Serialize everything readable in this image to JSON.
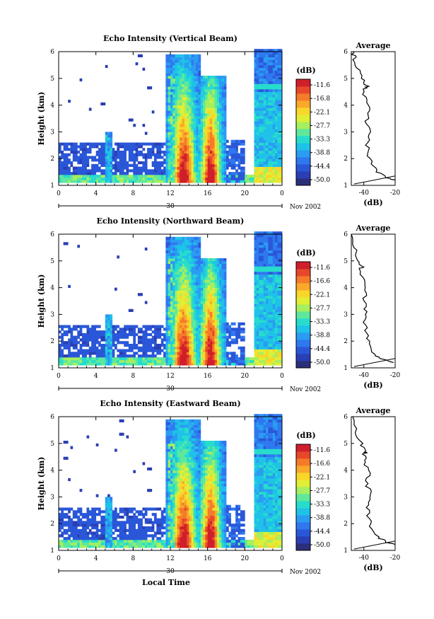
{
  "colors": {
    "scale": [
      "#2b2f7a",
      "#2a3fb4",
      "#2a57d8",
      "#2f78f0",
      "#2a9cf2",
      "#1fc2e8",
      "#27dccc",
      "#5fe89c",
      "#a6ef5e",
      "#e1ee36",
      "#f9d62a",
      "#f9a82a",
      "#f57a2a",
      "#e8482a",
      "#cf1f2a"
    ]
  },
  "chart_data": [
    {
      "type": "heatmap",
      "title": "Echo Intensity (Vertical Beam)",
      "xlabel": "",
      "ylabel": "Height (km)",
      "x_ticks": [
        "0",
        "4",
        "8",
        "12",
        "16",
        "20",
        "0"
      ],
      "y_ticks": [
        "1",
        "2",
        "3",
        "4",
        "5",
        "6"
      ],
      "date_label": "30",
      "month_label": "Nov 2002",
      "xlim": [
        0,
        24
      ],
      "ylim": [
        1,
        6
      ],
      "colorbar": {
        "unit": "(dB)",
        "ticks": [
          "-11.6",
          "-16.8",
          "-22.1",
          "-27.7",
          "-33.3",
          "-38.8",
          "-44.4",
          "-50.0"
        ],
        "range": [
          -50,
          -11.6
        ]
      },
      "average": {
        "title": "Average",
        "xlabel": "(dB)",
        "x_ticks": [
          "-40",
          "-20"
        ],
        "y_ticks": [
          "1",
          "2",
          "3",
          "4",
          "5",
          "6"
        ],
        "xlim": [
          -48,
          -20
        ],
        "profile": [
          {
            "h": 1.2,
            "db": -20
          },
          {
            "h": 1.3,
            "db": -26
          },
          {
            "h": 1.5,
            "db": -31
          },
          {
            "h": 1.8,
            "db": -35
          },
          {
            "h": 2.2,
            "db": -37
          },
          {
            "h": 2.6,
            "db": -38
          },
          {
            "h": 3.0,
            "db": -37
          },
          {
            "h": 3.4,
            "db": -38
          },
          {
            "h": 3.8,
            "db": -37
          },
          {
            "h": 4.2,
            "db": -39
          },
          {
            "h": 4.6,
            "db": -40
          },
          {
            "h": 4.7,
            "db": -38
          },
          {
            "h": 5.0,
            "db": -42
          },
          {
            "h": 5.4,
            "db": -44
          },
          {
            "h": 5.8,
            "db": -46
          },
          {
            "h": 6.0,
            "db": -47
          }
        ]
      }
    },
    {
      "type": "heatmap",
      "title": "Echo Intensity (Northward Beam)",
      "xlabel": "",
      "ylabel": "Height (km)",
      "x_ticks": [
        "0",
        "4",
        "8",
        "12",
        "16",
        "20",
        "0"
      ],
      "y_ticks": [
        "1",
        "2",
        "3",
        "4",
        "5",
        "6"
      ],
      "date_label": "30",
      "month_label": "Nov 2002",
      "xlim": [
        0,
        24
      ],
      "ylim": [
        1,
        6
      ],
      "colorbar": {
        "unit": "(dB)",
        "ticks": [
          "-11.6",
          "-16.6",
          "-22.1",
          "-27.7",
          "-33.3",
          "-38.8",
          "-44.4",
          "-50.0"
        ],
        "range": [
          -50,
          -11.6
        ]
      },
      "average": {
        "title": "Average",
        "xlabel": "(dB)",
        "x_ticks": [
          "-40",
          "-20"
        ],
        "y_ticks": [
          "1",
          "2",
          "3",
          "4",
          "5",
          "6"
        ],
        "xlim": [
          -48,
          -20
        ],
        "profile": [
          {
            "h": 1.2,
            "db": -21
          },
          {
            "h": 1.3,
            "db": -27
          },
          {
            "h": 1.5,
            "db": -33
          },
          {
            "h": 1.9,
            "db": -36
          },
          {
            "h": 2.3,
            "db": -38
          },
          {
            "h": 2.7,
            "db": -39
          },
          {
            "h": 3.1,
            "db": -38
          },
          {
            "h": 3.5,
            "db": -40
          },
          {
            "h": 3.9,
            "db": -39
          },
          {
            "h": 4.3,
            "db": -41
          },
          {
            "h": 4.7,
            "db": -42
          },
          {
            "h": 4.8,
            "db": -41
          },
          {
            "h": 5.1,
            "db": -44
          },
          {
            "h": 5.5,
            "db": -46
          },
          {
            "h": 6.0,
            "db": -47
          }
        ]
      }
    },
    {
      "type": "heatmap",
      "title": "Echo Intensity (Eastward Beam)",
      "xlabel": "Local Time",
      "ylabel": "Height (km)",
      "x_ticks": [
        "0",
        "4",
        "8",
        "12",
        "16",
        "20",
        "0"
      ],
      "y_ticks": [
        "1",
        "2",
        "3",
        "4",
        "5",
        "6"
      ],
      "date_label": "30",
      "month_label": "Nov 2002",
      "xlim": [
        0,
        24
      ],
      "ylim": [
        1,
        6
      ],
      "colorbar": {
        "unit": "(dB)",
        "ticks": [
          "-11.6",
          "-16.6",
          "-22.1",
          "-27.7",
          "-33.3",
          "-38.8",
          "-44.4",
          "-50.0"
        ],
        "range": [
          -50,
          -11.6
        ]
      },
      "average": {
        "title": "Average",
        "xlabel": "(dB)",
        "x_ticks": [
          "-40",
          "-20"
        ],
        "y_ticks": [
          "1",
          "2",
          "3",
          "4",
          "5",
          "6"
        ],
        "xlim": [
          -48,
          -20
        ],
        "profile": [
          {
            "h": 1.2,
            "db": -20
          },
          {
            "h": 1.3,
            "db": -25
          },
          {
            "h": 1.5,
            "db": -31
          },
          {
            "h": 1.9,
            "db": -35
          },
          {
            "h": 2.3,
            "db": -37
          },
          {
            "h": 2.7,
            "db": -37
          },
          {
            "h": 3.1,
            "db": -36
          },
          {
            "h": 3.5,
            "db": -38
          },
          {
            "h": 3.9,
            "db": -37
          },
          {
            "h": 4.3,
            "db": -39
          },
          {
            "h": 4.6,
            "db": -40
          },
          {
            "h": 4.7,
            "db": -38
          },
          {
            "h": 5.0,
            "db": -42
          },
          {
            "h": 5.4,
            "db": -45
          },
          {
            "h": 6.0,
            "db": -47
          }
        ]
      }
    }
  ]
}
